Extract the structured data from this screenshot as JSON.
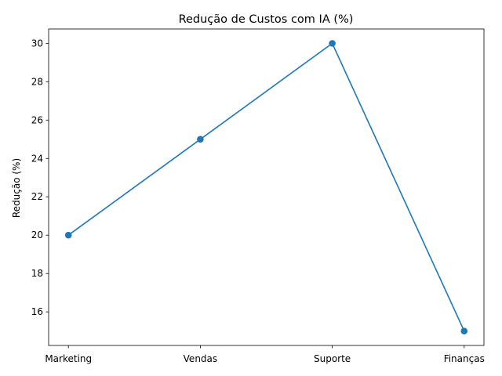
{
  "chart_data": {
    "type": "line",
    "title": "Redução de Custos com IA (%)",
    "xlabel": "",
    "ylabel": "Redução (%)",
    "categories": [
      "Marketing",
      "Vendas",
      "Suporte",
      "Finanças"
    ],
    "series": [
      {
        "values": [
          20,
          25,
          30,
          15
        ],
        "color": "#1f77b4",
        "marker": "circle"
      }
    ],
    "ylim": [
      14.25,
      30.75
    ],
    "yticks": [
      "16",
      "18",
      "20",
      "22",
      "24",
      "26",
      "28",
      "30"
    ],
    "grid": false,
    "legend": "none"
  }
}
